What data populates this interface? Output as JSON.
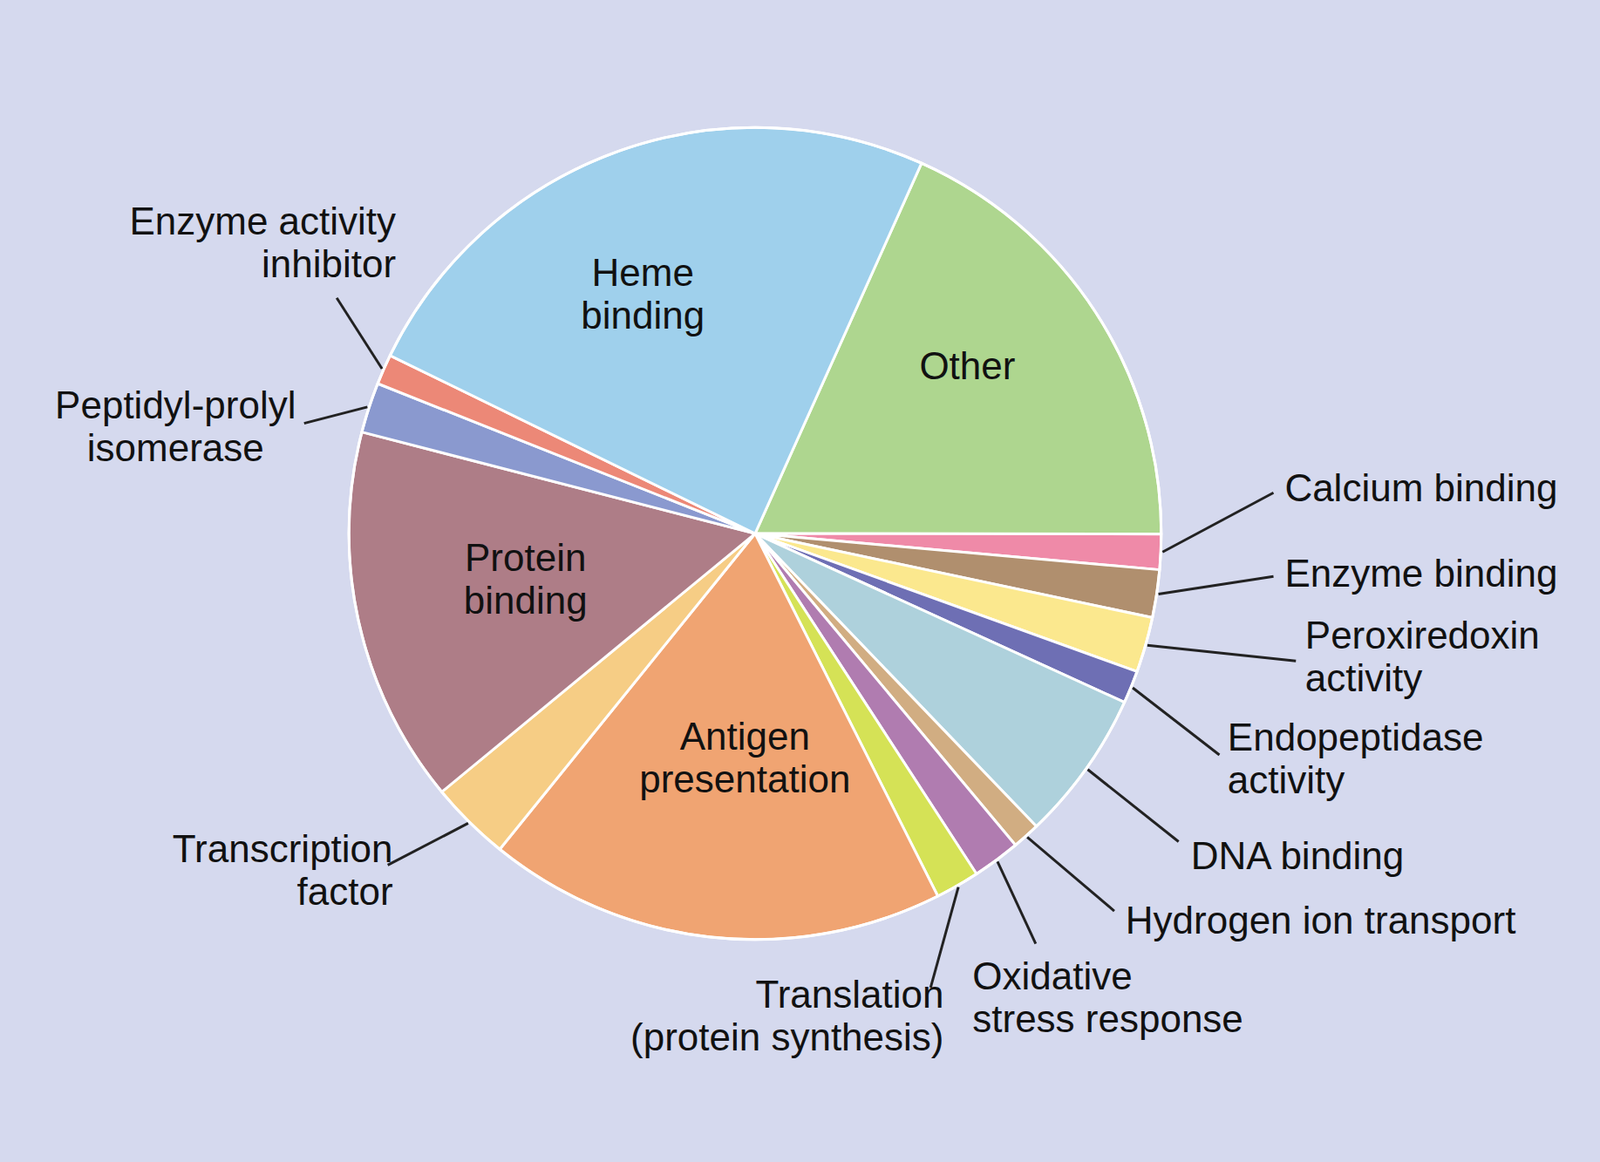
{
  "chart_data": {
    "type": "pie",
    "categories": [
      "Other",
      "Calcium binding",
      "Enzyme binding",
      "Peroxiredoxin\nactivity",
      "Endopeptidase\nactivity",
      "DNA binding",
      "Hydrogen ion transport",
      "Oxidative\nstress response",
      "Translation\n(protein synthesis)",
      "Antigen\npresentation",
      "Transcription\nfactor",
      "Protein\nbinding",
      "Peptidyl-prolyl\nisomerase",
      "Enzyme activity\ninhibitor",
      "Heme\nbinding"
    ],
    "values": [
      18.3,
      1.4,
      1.9,
      2.2,
      1.3,
      6.0,
      1.1,
      1.9,
      1.75,
      18.25,
      3.2,
      15.0,
      2.0,
      1.2,
      24.5
    ],
    "colors": [
      "#aed68f",
      "#ef8aa8",
      "#b08f6e",
      "#fbe88e",
      "#6e6fb4",
      "#aed1dc",
      "#d1ad82",
      "#b07cb0",
      "#d5e256",
      "#f0a472",
      "#f6cd85",
      "#ae7d87",
      "#8a99cf",
      "#ec8877",
      "#9fd0ec"
    ]
  }
}
